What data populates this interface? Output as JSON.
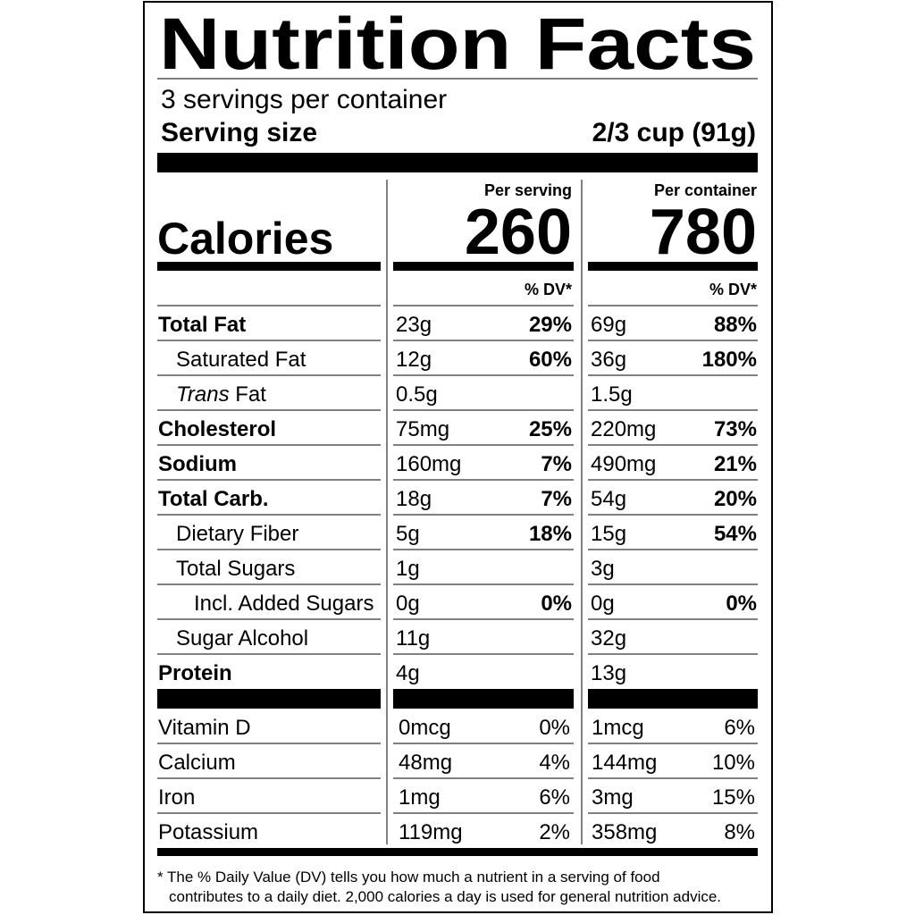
{
  "title": "Nutrition Facts",
  "servings": "3 servings per container",
  "serving_size": {
    "label": "Serving size",
    "value": "2/3 cup (91g)"
  },
  "calories": {
    "label": "Calories",
    "per_serving_header": "Per serving",
    "per_container_header": "Per container",
    "per_serving": "260",
    "per_container": "780",
    "dv_header_serving": "% DV*",
    "dv_header_container": "% DV*"
  },
  "nutrients": [
    {
      "label": "Total Fat",
      "serving": "23g",
      "serving_dv": "29%",
      "container": "69g",
      "container_dv": "88%"
    },
    {
      "label": "Saturated Fat",
      "serving": "12g",
      "serving_dv": "60%",
      "container": "36g",
      "container_dv": "180%"
    },
    {
      "label_italic": "Trans",
      "label": " Fat",
      "serving": "0.5g",
      "serving_dv": null,
      "container": "1.5g",
      "container_dv": null
    },
    {
      "label": "Cholesterol",
      "serving": "75mg",
      "serving_dv": "25%",
      "container": "220mg",
      "container_dv": "73%"
    },
    {
      "label": "Sodium",
      "serving": "160mg",
      "serving_dv": "7%",
      "container": "490mg",
      "container_dv": "21%"
    },
    {
      "label": "Total Carb.",
      "serving": "18g",
      "serving_dv": "7%",
      "container": "54g",
      "container_dv": "20%"
    },
    {
      "label": "Dietary Fiber",
      "serving": "5g",
      "serving_dv": "18%",
      "container": "15g",
      "container_dv": "54%"
    },
    {
      "label": "Total Sugars",
      "serving": "1g",
      "serving_dv": null,
      "container": "3g",
      "container_dv": null
    },
    {
      "label": "Incl. Added Sugars",
      "serving": "0g",
      "serving_dv": "0%",
      "container": "0g",
      "container_dv": "0%"
    },
    {
      "label": "Sugar Alcohol",
      "serving": "11g",
      "serving_dv": null,
      "container": "32g",
      "container_dv": null
    },
    {
      "label": "Protein",
      "serving": "4g",
      "serving_dv": null,
      "container": "13g",
      "container_dv": null
    }
  ],
  "vitamins": [
    {
      "label": "Vitamin D",
      "serving": "0mcg",
      "serving_dv": "0%",
      "container": "1mcg",
      "container_dv": "6%"
    },
    {
      "label": "Calcium",
      "serving": "48mg",
      "serving_dv": "4%",
      "container": "144mg",
      "container_dv": "10%"
    },
    {
      "label": "Iron",
      "serving": "1mg",
      "serving_dv": "6%",
      "container": "3mg",
      "container_dv": "15%"
    },
    {
      "label": "Potassium",
      "serving": "119mg",
      "serving_dv": "2%",
      "container": "358mg",
      "container_dv": "8%"
    }
  ],
  "footnote": [
    "* The % Daily Value (DV) tells you how much a nutrient in a serving of food",
    "contributes to a daily diet. 2,000 calories a day is used for general nutrition advice."
  ]
}
